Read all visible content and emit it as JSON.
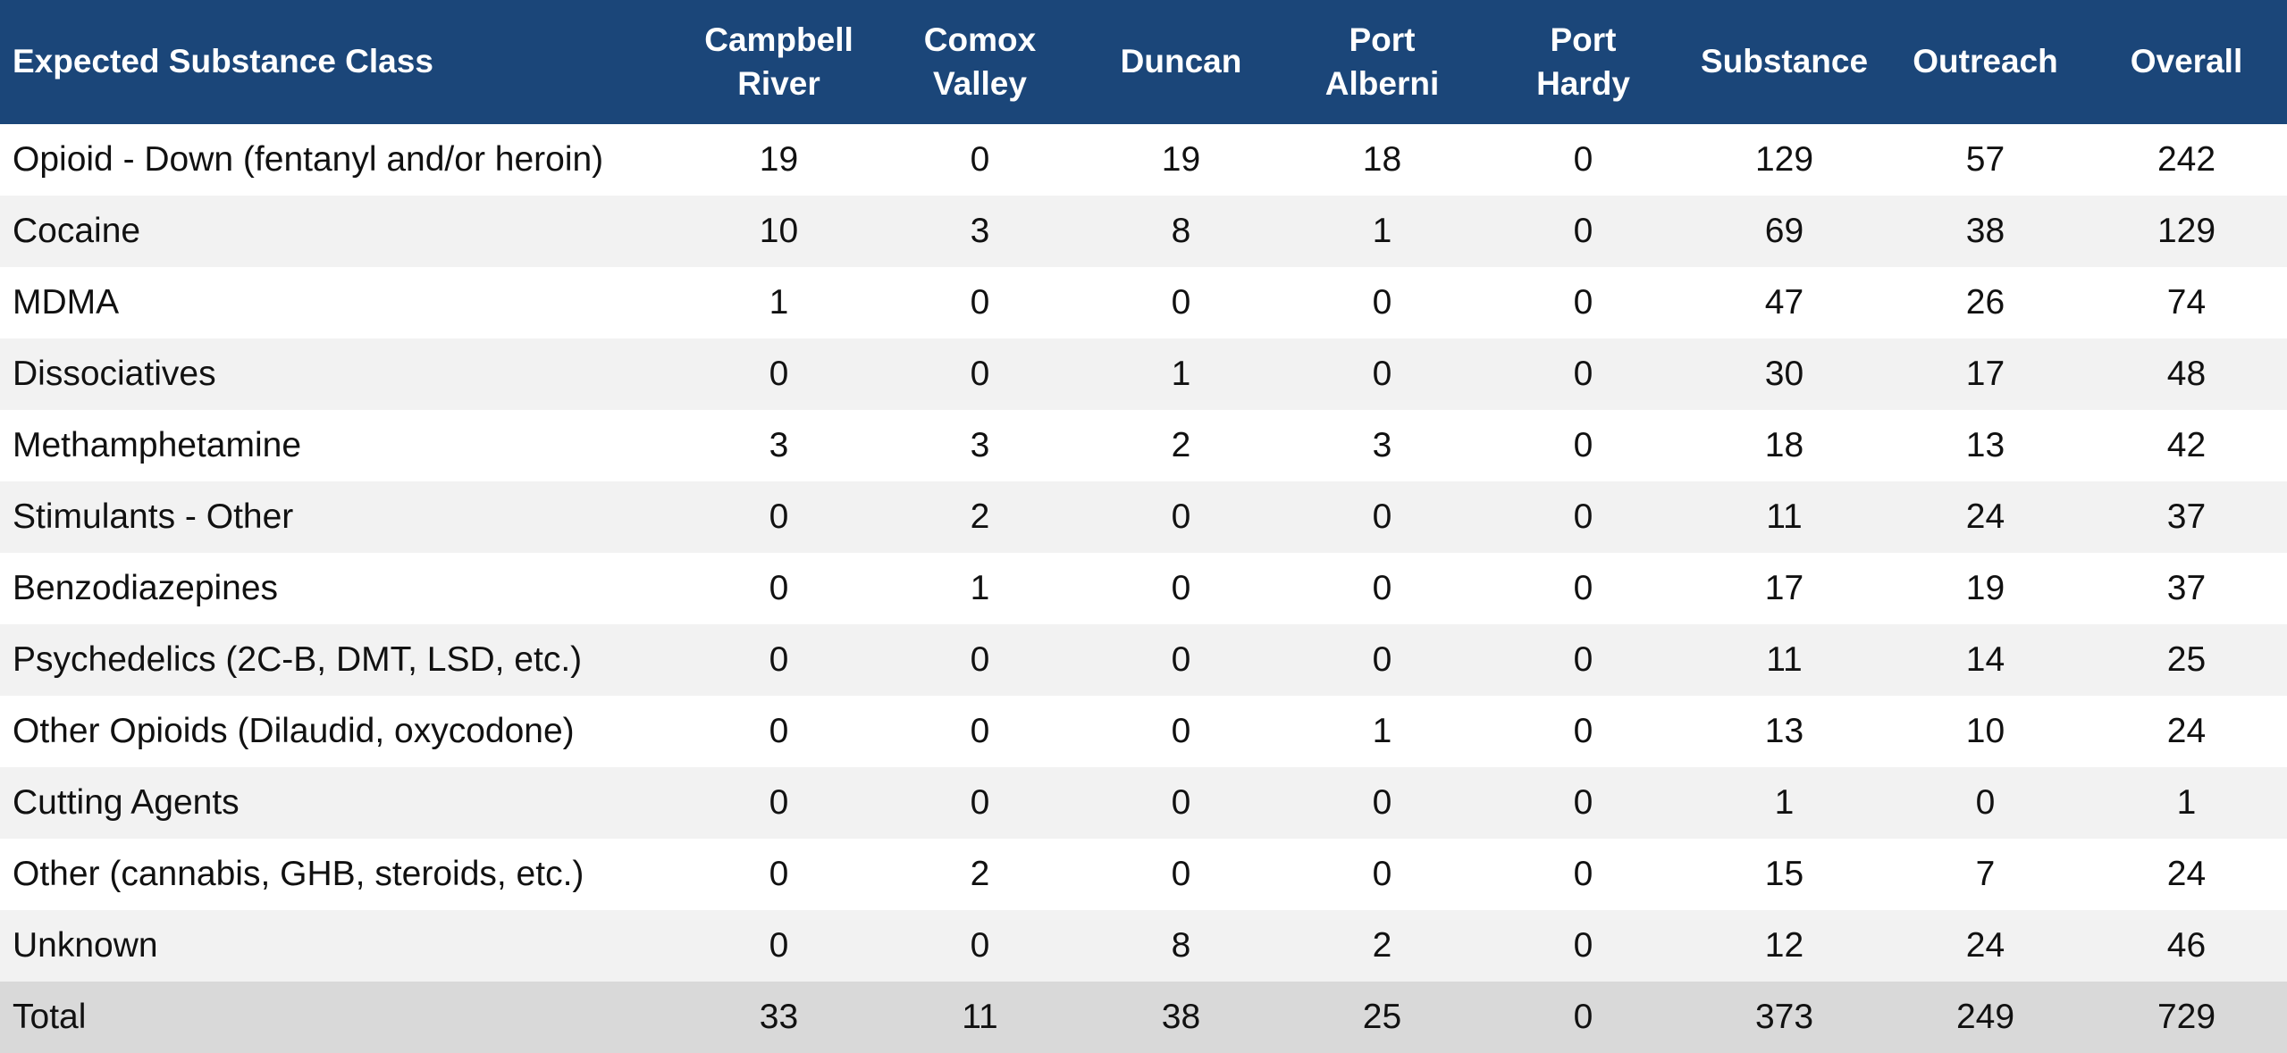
{
  "table": {
    "header": [
      "Expected Substance Class",
      "Campbell River",
      "Comox Valley",
      "Duncan",
      "Port Alberni",
      "Port Hardy",
      "Substance",
      "Outreach",
      "Overall"
    ],
    "rows": [
      [
        "Opioid - Down (fentanyl and/or heroin)",
        19,
        0,
        19,
        18,
        0,
        129,
        57,
        242
      ],
      [
        "Cocaine",
        10,
        3,
        8,
        1,
        0,
        69,
        38,
        129
      ],
      [
        "MDMA",
        1,
        0,
        0,
        0,
        0,
        47,
        26,
        74
      ],
      [
        "Dissociatives",
        0,
        0,
        1,
        0,
        0,
        30,
        17,
        48
      ],
      [
        "Methamphetamine",
        3,
        3,
        2,
        3,
        0,
        18,
        13,
        42
      ],
      [
        "Stimulants - Other",
        0,
        2,
        0,
        0,
        0,
        11,
        24,
        37
      ],
      [
        "Benzodiazepines",
        0,
        1,
        0,
        0,
        0,
        17,
        19,
        37
      ],
      [
        "Psychedelics (2C-B, DMT, LSD, etc.)",
        0,
        0,
        0,
        0,
        0,
        11,
        14,
        25
      ],
      [
        "Other Opioids (Dilaudid, oxycodone)",
        0,
        0,
        0,
        1,
        0,
        13,
        10,
        24
      ],
      [
        "Cutting Agents",
        0,
        0,
        0,
        0,
        0,
        1,
        0,
        1
      ],
      [
        "Other (cannabis, GHB, steroids, etc.)",
        0,
        2,
        0,
        0,
        0,
        15,
        7,
        24
      ],
      [
        "Unknown",
        0,
        0,
        8,
        2,
        0,
        12,
        24,
        46
      ]
    ],
    "total": [
      "Total",
      33,
      11,
      38,
      25,
      0,
      373,
      249,
      729
    ]
  }
}
